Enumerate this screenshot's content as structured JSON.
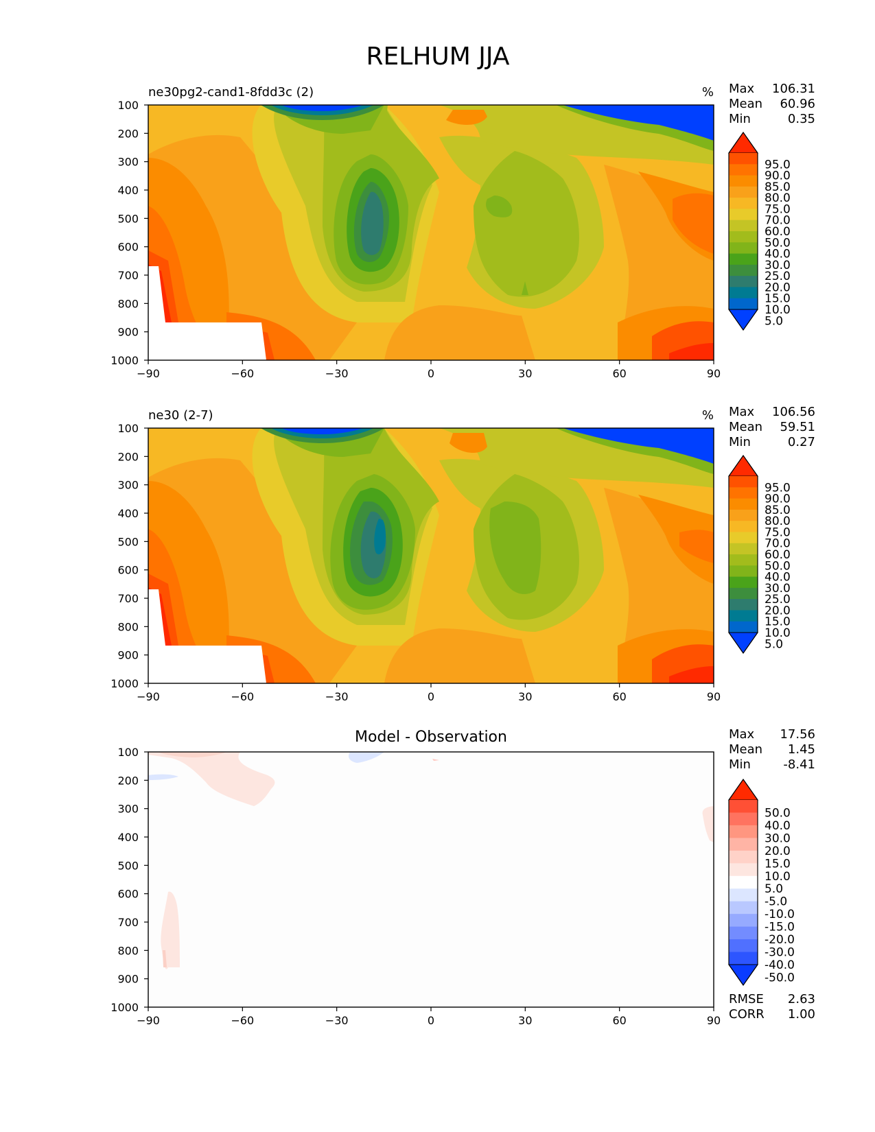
{
  "figure_title": "RELHUM JJA",
  "chart_data": [
    {
      "type": "heatmap",
      "title": "ne30pg2-cand1-8fdd3c (2)",
      "units": "%",
      "xlabel": "",
      "ylabel": "",
      "x_ticks": [
        -90,
        -60,
        -30,
        0,
        30,
        60,
        90
      ],
      "y_ticks": [
        100,
        200,
        300,
        400,
        500,
        600,
        700,
        800,
        900,
        1000
      ],
      "xlim": [
        -90,
        90
      ],
      "ylim": [
        1000,
        100
      ],
      "stats": [
        {
          "label": "Max",
          "value": "106.31"
        },
        {
          "label": "Mean",
          "value": "60.96"
        },
        {
          "label": "Min",
          "value": "0.35"
        }
      ],
      "colorbar": {
        "levels": [
          "95.0",
          "90.0",
          "85.0",
          "80.0",
          "75.0",
          "70.0",
          "60.0",
          "50.0",
          "40.0",
          "30.0",
          "25.0",
          "20.0",
          "15.0",
          "10.0",
          "5.0"
        ],
        "colors": [
          "#ff2a00",
          "#ff5200",
          "#ff7300",
          "#fb8c00",
          "#f9a11a",
          "#f7b824",
          "#e8cb2a",
          "#c4c425",
          "#a2bc1c",
          "#81b41a",
          "#4aa31a",
          "#3d8e3d",
          "#2e7c6e",
          "#007b92",
          "#0067cc",
          "#0040ff"
        ]
      }
    },
    {
      "type": "heatmap",
      "title": "ne30 (2-7)",
      "units": "%",
      "xlabel": "",
      "ylabel": "",
      "x_ticks": [
        -90,
        -60,
        -30,
        0,
        30,
        60,
        90
      ],
      "y_ticks": [
        100,
        200,
        300,
        400,
        500,
        600,
        700,
        800,
        900,
        1000
      ],
      "xlim": [
        -90,
        90
      ],
      "ylim": [
        1000,
        100
      ],
      "stats": [
        {
          "label": "Max",
          "value": "106.56"
        },
        {
          "label": "Mean",
          "value": "59.51"
        },
        {
          "label": "Min",
          "value": "0.27"
        }
      ],
      "colorbar": {
        "levels": [
          "95.0",
          "90.0",
          "85.0",
          "80.0",
          "75.0",
          "70.0",
          "60.0",
          "50.0",
          "40.0",
          "30.0",
          "25.0",
          "20.0",
          "15.0",
          "10.0",
          "5.0"
        ],
        "colors": [
          "#ff2a00",
          "#ff5200",
          "#ff7300",
          "#fb8c00",
          "#f9a11a",
          "#f7b824",
          "#e8cb2a",
          "#c4c425",
          "#a2bc1c",
          "#81b41a",
          "#4aa31a",
          "#3d8e3d",
          "#2e7c6e",
          "#007b92",
          "#0067cc",
          "#0040ff"
        ]
      }
    },
    {
      "type": "heatmap",
      "title": "Model - Observation",
      "xlabel": "",
      "ylabel": "",
      "x_ticks": [
        -90,
        -60,
        -30,
        0,
        30,
        60,
        90
      ],
      "y_ticks": [
        100,
        200,
        300,
        400,
        500,
        600,
        700,
        800,
        900,
        1000
      ],
      "xlim": [
        -90,
        90
      ],
      "ylim": [
        1000,
        100
      ],
      "stats": [
        {
          "label": "Max",
          "value": "17.56"
        },
        {
          "label": "Mean",
          "value": "1.45"
        },
        {
          "label": "Min",
          "value": "-8.41"
        }
      ],
      "extra_stats": [
        {
          "label": "RMSE",
          "value": "2.63"
        },
        {
          "label": "CORR",
          "value": "1.00"
        }
      ],
      "colorbar": {
        "levels": [
          "50.0",
          "40.0",
          "30.0",
          "20.0",
          "15.0",
          "10.0",
          "5.0",
          "-5.0",
          "-10.0",
          "-15.0",
          "-20.0",
          "-30.0",
          "-40.0",
          "-50.0"
        ],
        "colors": [
          "#ff2a00",
          "#ff5035",
          "#ff7360",
          "#ff9680",
          "#ffb4a5",
          "#ffd2c8",
          "#fde6e0",
          "#ffffff",
          "#dce6ff",
          "#b9c8ff",
          "#96aaff",
          "#738cff",
          "#5070ff",
          "#2d55ff",
          "#0a3cff"
        ]
      }
    }
  ]
}
